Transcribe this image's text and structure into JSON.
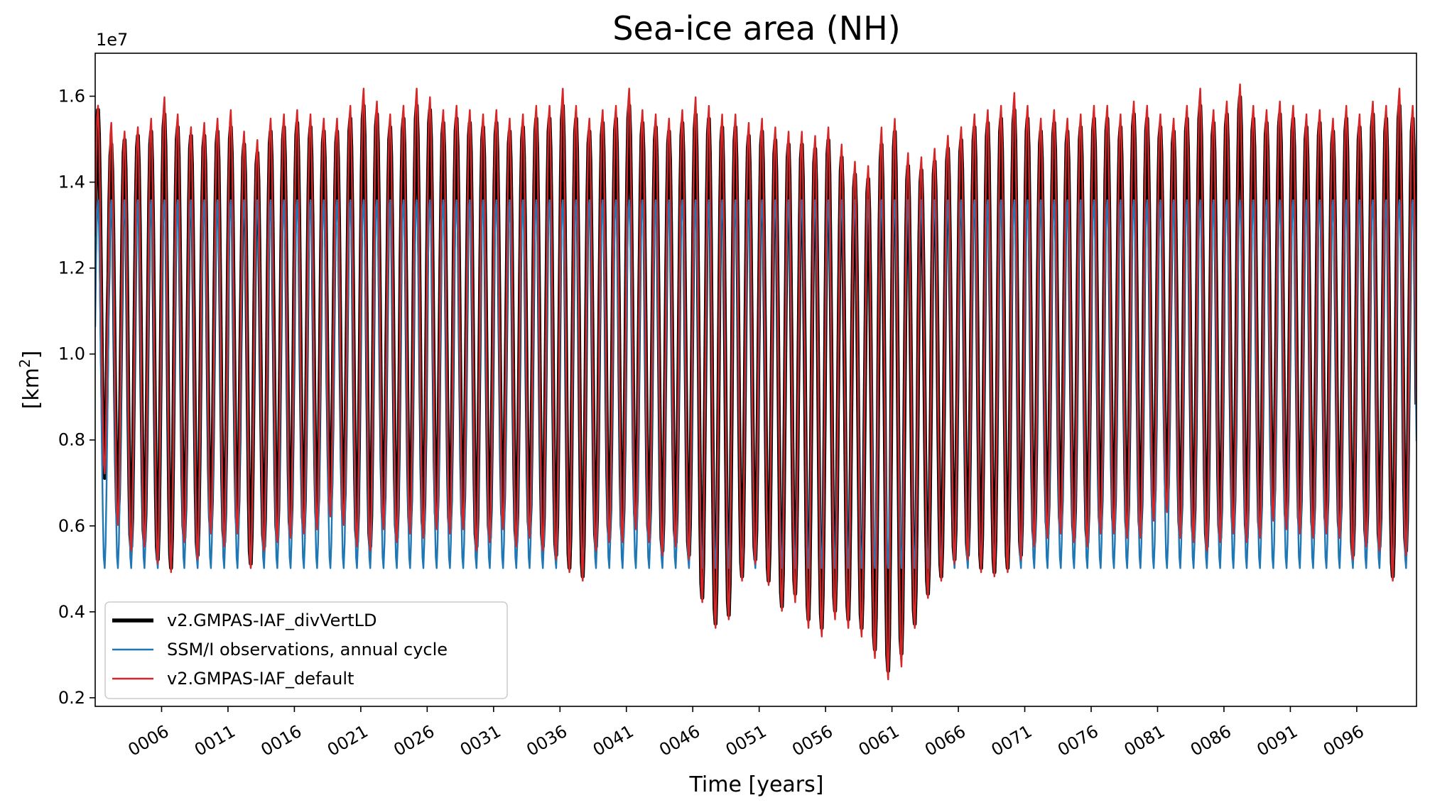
{
  "chart_data": {
    "type": "line",
    "title": "Sea-ice area (NH)",
    "xlabel": "Time [years]",
    "ylabel_text": "[km",
    "ylabel_sup": "2",
    "ylabel_close": "]",
    "y_offset_label": "1e7",
    "y_scale": 10000000,
    "xlim": [
      1,
      100.5
    ],
    "ylim": [
      0.18,
      1.7
    ],
    "x_tick_values": [
      6,
      11,
      16,
      21,
      26,
      31,
      36,
      41,
      46,
      51,
      56,
      61,
      66,
      71,
      76,
      81,
      86,
      91,
      96
    ],
    "x_tick_labels": [
      "0006",
      "0011",
      "0016",
      "0021",
      "0026",
      "0031",
      "0036",
      "0041",
      "0046",
      "0051",
      "0056",
      "0061",
      "0066",
      "0071",
      "0076",
      "0081",
      "0086",
      "0091",
      "0096"
    ],
    "y_tick_values": [
      0.2,
      0.4,
      0.6,
      0.8,
      1.0,
      1.2,
      1.4,
      1.6
    ],
    "y_tick_labels": [
      "0.2",
      "0.4",
      "0.6",
      "0.8",
      "1.0",
      "1.2",
      "1.4",
      "1.6"
    ],
    "legend_position": "lower-left",
    "series": [
      {
        "name": "v2.GMPAS-IAF_divVertLD",
        "color": "#000000",
        "style": "thick",
        "annual_cycle_repeated": false,
        "years": [
          1,
          2,
          3,
          4,
          5,
          6,
          7,
          8,
          9,
          10,
          11,
          12,
          13,
          14,
          15,
          16,
          17,
          18,
          19,
          20,
          21,
          22,
          23,
          24,
          25,
          26,
          27,
          28,
          29,
          30,
          31,
          32,
          33,
          34,
          35,
          36,
          37,
          38,
          39,
          40,
          41,
          42,
          43,
          44,
          45,
          46,
          47,
          48,
          49,
          50,
          51,
          52,
          53,
          54,
          55,
          56,
          57,
          58,
          59,
          60,
          61,
          62,
          63,
          64,
          65,
          66,
          67,
          68,
          69,
          70,
          71,
          72,
          73,
          74,
          75,
          76,
          77,
          78,
          79,
          80,
          81,
          82,
          83,
          84,
          85,
          86,
          87,
          88,
          89,
          90,
          91,
          92,
          93,
          94,
          95,
          96,
          97,
          98,
          99,
          100
        ],
        "annual_max": [
          1.57,
          1.49,
          1.5,
          1.51,
          1.52,
          1.56,
          1.53,
          1.51,
          1.51,
          1.52,
          1.53,
          1.49,
          1.47,
          1.52,
          1.53,
          1.54,
          1.53,
          1.52,
          1.52,
          1.55,
          1.58,
          1.56,
          1.53,
          1.55,
          1.58,
          1.57,
          1.54,
          1.55,
          1.54,
          1.53,
          1.54,
          1.52,
          1.53,
          1.55,
          1.55,
          1.58,
          1.55,
          1.52,
          1.54,
          1.55,
          1.58,
          1.54,
          1.53,
          1.52,
          1.54,
          1.56,
          1.55,
          1.53,
          1.53,
          1.51,
          1.52,
          1.5,
          1.49,
          1.49,
          1.48,
          1.5,
          1.46,
          1.42,
          1.41,
          1.49,
          1.52,
          1.44,
          1.43,
          1.45,
          1.48,
          1.5,
          1.53,
          1.54,
          1.55,
          1.57,
          1.55,
          1.52,
          1.54,
          1.52,
          1.53,
          1.55,
          1.55,
          1.53,
          1.56,
          1.55,
          1.53,
          1.52,
          1.55,
          1.58,
          1.54,
          1.56,
          1.6,
          1.55,
          1.54,
          1.56,
          1.55,
          1.53,
          1.54,
          1.52,
          1.55,
          1.53,
          1.56,
          1.55,
          1.58,
          1.55
        ],
        "annual_min": [
          0.71,
          0.61,
          0.55,
          0.56,
          0.52,
          0.5,
          0.57,
          0.53,
          0.59,
          0.56,
          0.59,
          0.51,
          0.55,
          0.57,
          0.58,
          0.59,
          0.6,
          0.63,
          0.61,
          0.56,
          0.55,
          0.6,
          0.57,
          0.59,
          0.58,
          0.6,
          0.59,
          0.6,
          0.55,
          0.57,
          0.6,
          0.56,
          0.58,
          0.55,
          0.53,
          0.5,
          0.48,
          0.55,
          0.57,
          0.57,
          0.6,
          0.57,
          0.54,
          0.56,
          0.53,
          0.43,
          0.37,
          0.39,
          0.48,
          0.52,
          0.47,
          0.41,
          0.44,
          0.38,
          0.36,
          0.4,
          0.38,
          0.36,
          0.31,
          0.26,
          0.3,
          0.37,
          0.44,
          0.48,
          0.52,
          0.53,
          0.5,
          0.49,
          0.5,
          0.53,
          0.56,
          0.58,
          0.59,
          0.57,
          0.56,
          0.59,
          0.59,
          0.58,
          0.58,
          0.62,
          0.64,
          0.58,
          0.57,
          0.55,
          0.57,
          0.59,
          0.57,
          0.58,
          0.62,
          0.6,
          0.59,
          0.58,
          0.59,
          0.58,
          0.53,
          0.56,
          0.55,
          0.48,
          0.54,
          0.53
        ]
      },
      {
        "name": "SSM/I observations, annual cycle",
        "color": "#1f77b4",
        "style": "thin",
        "annual_cycle_repeated": true,
        "cycle_max": 1.36,
        "cycle_min": 0.5
      },
      {
        "name": "v2.GMPAS-IAF_default",
        "color": "#d62728",
        "style": "thin",
        "annual_cycle_repeated": false,
        "years": [
          1,
          2,
          3,
          4,
          5,
          6,
          7,
          8,
          9,
          10,
          11,
          12,
          13,
          14,
          15,
          16,
          17,
          18,
          19,
          20,
          21,
          22,
          23,
          24,
          25,
          26,
          27,
          28,
          29,
          30,
          31,
          32,
          33,
          34,
          35,
          36,
          37,
          38,
          39,
          40,
          41,
          42,
          43,
          44,
          45,
          46,
          47,
          48,
          49,
          50,
          51,
          52,
          53,
          54,
          55,
          56,
          57,
          58,
          59,
          60,
          61,
          62,
          63,
          64,
          65,
          66,
          67,
          68,
          69,
          70,
          71,
          72,
          73,
          74,
          75,
          76,
          77,
          78,
          79,
          80,
          81,
          82,
          83,
          84,
          85,
          86,
          87,
          88,
          89,
          90,
          91,
          92,
          93,
          94,
          95,
          96,
          97,
          98,
          99,
          100
        ],
        "annual_max": [
          1.58,
          1.54,
          1.52,
          1.53,
          1.55,
          1.6,
          1.56,
          1.53,
          1.54,
          1.55,
          1.57,
          1.52,
          1.5,
          1.55,
          1.56,
          1.57,
          1.56,
          1.55,
          1.55,
          1.58,
          1.62,
          1.59,
          1.56,
          1.58,
          1.62,
          1.6,
          1.57,
          1.58,
          1.57,
          1.56,
          1.57,
          1.55,
          1.56,
          1.58,
          1.58,
          1.62,
          1.58,
          1.55,
          1.57,
          1.58,
          1.62,
          1.57,
          1.56,
          1.55,
          1.57,
          1.6,
          1.58,
          1.56,
          1.56,
          1.54,
          1.55,
          1.53,
          1.52,
          1.52,
          1.51,
          1.53,
          1.49,
          1.45,
          1.44,
          1.53,
          1.55,
          1.47,
          1.46,
          1.48,
          1.51,
          1.53,
          1.56,
          1.57,
          1.58,
          1.61,
          1.58,
          1.55,
          1.57,
          1.55,
          1.56,
          1.58,
          1.58,
          1.56,
          1.59,
          1.58,
          1.56,
          1.55,
          1.58,
          1.62,
          1.57,
          1.59,
          1.63,
          1.58,
          1.57,
          1.59,
          1.58,
          1.56,
          1.57,
          1.55,
          1.58,
          1.56,
          1.59,
          1.58,
          1.62,
          1.58
        ],
        "annual_min": [
          0.72,
          0.6,
          0.54,
          0.55,
          0.51,
          0.49,
          0.56,
          0.52,
          0.58,
          0.55,
          0.58,
          0.5,
          0.54,
          0.56,
          0.57,
          0.58,
          0.59,
          0.62,
          0.6,
          0.55,
          0.54,
          0.59,
          0.56,
          0.58,
          0.57,
          0.59,
          0.58,
          0.59,
          0.54,
          0.56,
          0.59,
          0.55,
          0.57,
          0.54,
          0.52,
          0.49,
          0.47,
          0.54,
          0.56,
          0.56,
          0.59,
          0.56,
          0.53,
          0.55,
          0.52,
          0.42,
          0.36,
          0.38,
          0.47,
          0.51,
          0.46,
          0.4,
          0.42,
          0.36,
          0.34,
          0.38,
          0.36,
          0.34,
          0.29,
          0.24,
          0.27,
          0.36,
          0.43,
          0.47,
          0.51,
          0.52,
          0.49,
          0.48,
          0.49,
          0.52,
          0.55,
          0.57,
          0.58,
          0.56,
          0.55,
          0.58,
          0.58,
          0.57,
          0.57,
          0.61,
          0.63,
          0.57,
          0.56,
          0.54,
          0.56,
          0.58,
          0.56,
          0.57,
          0.61,
          0.59,
          0.58,
          0.57,
          0.58,
          0.57,
          0.52,
          0.55,
          0.54,
          0.47,
          0.53,
          0.52
        ]
      }
    ]
  }
}
